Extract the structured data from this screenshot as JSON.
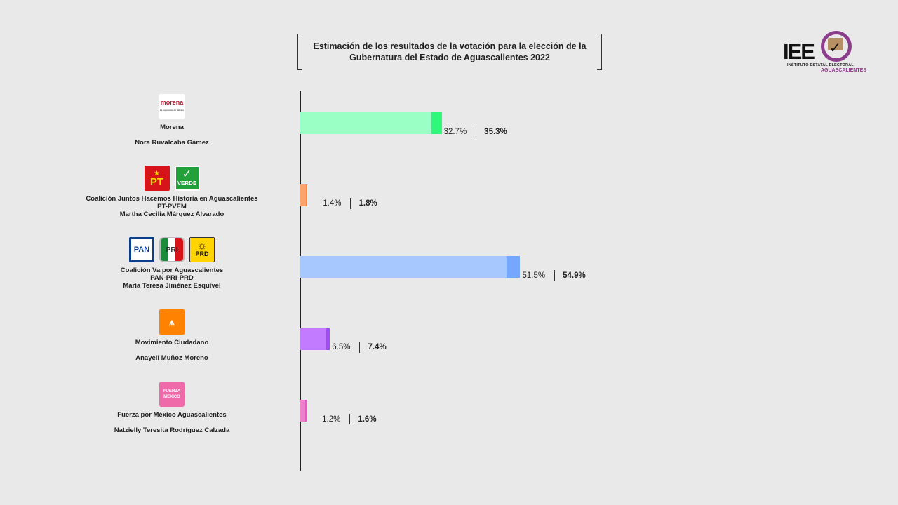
{
  "header": {
    "title_line1": "Estimación de los resultados de la votación para la elección de la",
    "title_line2": "Gubernatura del Estado de Aguascalientes 2022"
  },
  "logo": {
    "mark": "IEE",
    "line1": "INSTITUTO ESTATAL ELECTORAL",
    "line2": "AGUASCALIENTES"
  },
  "party_logos": {
    "morena": "morena",
    "morena_sub": "La esperanza de México",
    "pt": "PT",
    "verde": "VERDE",
    "pan": "PAN",
    "pri": "PRI",
    "prd": "PRD",
    "fxm_l1": "FUERZA",
    "fxm_l2": "MEXICO"
  },
  "chart_data": {
    "type": "bar",
    "orientation": "horizontal",
    "title": "Estimación de los resultados de la votación para la elección de la Gubernatura del Estado de Aguascalientes 2022",
    "categories": [
      {
        "lines": [
          "Morena",
          "",
          "Nora Ruvalcaba Gámez"
        ],
        "lower": 32.7,
        "upper": 35.3,
        "lower_label": "32.7%",
        "upper_label": "35.3%",
        "light": "#99ffc4",
        "dark": "#2ef77a"
      },
      {
        "lines": [
          "Coalición Juntos Hacemos Historia en Aguascalientes",
          "PT-PVEM",
          "Martha Cecilia Márquez Alvarado"
        ],
        "lower": 1.4,
        "upper": 1.8,
        "lower_label": "1.4%",
        "upper_label": "1.8%",
        "light": "#fba36c",
        "dark": "#f7883f"
      },
      {
        "lines": [
          "Coalición Va por Aguascalientes",
          "PAN-PRI-PRD",
          "María Teresa Jiménez Esquivel"
        ],
        "lower": 51.5,
        "upper": 54.9,
        "lower_label": "51.5%",
        "upper_label": "54.9%",
        "light": "#a7c8ff",
        "dark": "#76a7ff"
      },
      {
        "lines": [
          "Movimiento Ciudadano",
          "",
          "Anayeli Muñoz Moreno"
        ],
        "lower": 6.5,
        "upper": 7.4,
        "lower_label": "6.5%",
        "upper_label": "7.4%",
        "light": "#c27bff",
        "dark": "#a24cf5"
      },
      {
        "lines": [
          "Fuerza por México Aguascalientes",
          "",
          "Natzielly Teresita Rodríguez Calzada"
        ],
        "lower": 1.2,
        "upper": 1.6,
        "lower_label": "1.2%",
        "upper_label": "1.6%",
        "light": "#f07fce",
        "dark": "#e55bc0"
      }
    ],
    "xlim": [
      0,
      100
    ],
    "grid": false,
    "legend": "none"
  }
}
